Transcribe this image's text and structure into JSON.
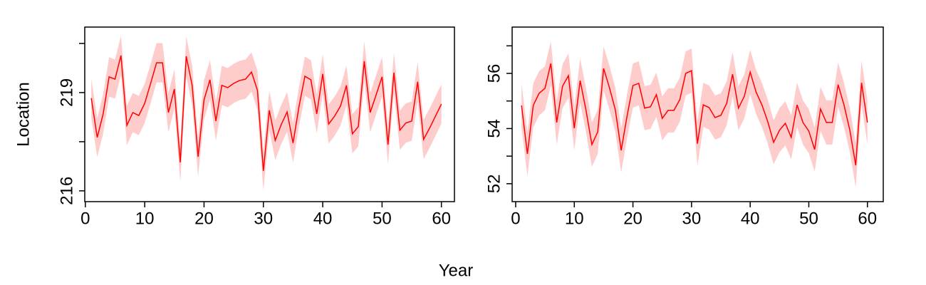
{
  "xlabel": "Year",
  "chart_data": [
    {
      "type": "line",
      "ylabel": "Location",
      "color": "#ff0000",
      "band_color": "#ffcccc",
      "x": [
        1,
        2,
        3,
        4,
        5,
        6,
        7,
        8,
        9,
        10,
        11,
        12,
        13,
        14,
        15,
        16,
        17,
        18,
        19,
        20,
        21,
        22,
        23,
        24,
        25,
        26,
        27,
        28,
        29,
        30,
        31,
        32,
        33,
        34,
        35,
        36,
        37,
        38,
        39,
        40,
        41,
        42,
        43,
        44,
        45,
        46,
        47,
        48,
        49,
        50,
        51,
        52,
        53,
        54,
        55,
        56,
        57,
        58,
        59,
        60
      ],
      "values": [
        218.83,
        217.63,
        218.35,
        219.48,
        219.41,
        220.13,
        218.0,
        218.39,
        218.3,
        218.67,
        219.28,
        219.91,
        219.91,
        218.39,
        219.11,
        216.87,
        220.11,
        219.22,
        217.04,
        218.78,
        219.39,
        218.13,
        219.22,
        219.15,
        219.28,
        219.37,
        219.41,
        219.63,
        219.07,
        216.61,
        218.46,
        217.54,
        218.02,
        218.41,
        217.46,
        218.57,
        219.5,
        219.39,
        218.35,
        219.57,
        218.04,
        218.28,
        218.59,
        219.22,
        217.74,
        217.96,
        219.96,
        218.39,
        218.93,
        219.48,
        217.41,
        219.61,
        217.85,
        218.07,
        218.13,
        219.33,
        217.57,
        217.91,
        218.28,
        218.65
      ],
      "lower": [
        218.23,
        217.03,
        217.75,
        218.88,
        218.81,
        219.53,
        217.4,
        217.79,
        217.7,
        218.07,
        218.68,
        219.31,
        219.31,
        217.79,
        218.51,
        216.27,
        219.51,
        218.62,
        216.44,
        218.18,
        218.79,
        217.53,
        218.62,
        218.55,
        218.68,
        218.77,
        218.81,
        219.03,
        218.47,
        216.01,
        217.86,
        216.94,
        217.42,
        217.81,
        216.86,
        217.97,
        218.9,
        218.79,
        217.75,
        218.97,
        217.44,
        217.68,
        217.99,
        218.62,
        217.14,
        217.36,
        219.36,
        217.79,
        218.33,
        218.88,
        216.81,
        219.01,
        217.25,
        217.47,
        217.53,
        218.73,
        216.97,
        217.31,
        217.68,
        218.05
      ],
      "upper": [
        219.43,
        218.23,
        218.95,
        220.08,
        220.01,
        220.73,
        218.6,
        218.99,
        218.9,
        219.27,
        219.88,
        220.51,
        220.51,
        218.99,
        219.71,
        217.47,
        220.71,
        219.82,
        217.64,
        219.38,
        219.99,
        218.73,
        219.82,
        219.75,
        219.88,
        219.97,
        220.01,
        220.23,
        219.67,
        217.21,
        219.06,
        218.14,
        218.62,
        219.01,
        218.06,
        219.17,
        220.1,
        219.99,
        218.95,
        220.17,
        218.64,
        218.88,
        219.19,
        219.82,
        218.34,
        218.56,
        220.56,
        218.99,
        219.53,
        220.08,
        218.01,
        220.21,
        218.45,
        218.67,
        218.73,
        219.93,
        218.17,
        218.51,
        218.88,
        219.25
      ],
      "xlim": [
        -0.1,
        62.2
      ],
      "xticks": [
        0,
        10,
        20,
        30,
        40,
        50,
        60
      ],
      "ylim": [
        215.67,
        221.0
      ],
      "yticks": [
        216,
        219
      ],
      "minor_yticks": [
        217.5,
        220.5
      ]
    },
    {
      "type": "line",
      "color": "#ff0000",
      "band_color": "#ffcccc",
      "x": [
        1,
        2,
        3,
        4,
        5,
        6,
        7,
        8,
        9,
        10,
        11,
        12,
        13,
        14,
        15,
        16,
        17,
        18,
        19,
        20,
        21,
        22,
        23,
        24,
        25,
        26,
        27,
        28,
        29,
        30,
        31,
        32,
        33,
        34,
        35,
        36,
        37,
        38,
        39,
        40,
        41,
        42,
        43,
        44,
        45,
        46,
        47,
        48,
        49,
        50,
        51,
        52,
        53,
        54,
        55,
        56,
        57,
        58,
        59,
        60
      ],
      "values": [
        54.84,
        53.08,
        54.84,
        55.28,
        55.46,
        56.36,
        54.22,
        55.54,
        55.92,
        54.01,
        55.74,
        54.66,
        53.42,
        53.88,
        56.18,
        55.48,
        54.68,
        53.21,
        54.45,
        55.56,
        55.64,
        54.74,
        54.79,
        55.23,
        54.37,
        54.66,
        54.66,
        55.05,
        56.0,
        56.1,
        53.45,
        54.86,
        54.76,
        54.4,
        54.48,
        54.92,
        55.97,
        54.74,
        55.17,
        56.05,
        55.33,
        54.86,
        54.25,
        53.5,
        53.94,
        54.19,
        53.68,
        54.86,
        54.22,
        53.91,
        53.24,
        54.71,
        54.22,
        54.22,
        55.59,
        54.86,
        53.94,
        52.67,
        55.66,
        54.22
      ],
      "lower": [
        54.04,
        52.28,
        54.04,
        54.48,
        54.66,
        55.56,
        53.42,
        54.74,
        55.12,
        53.21,
        54.94,
        53.86,
        52.62,
        53.08,
        55.38,
        54.68,
        53.88,
        52.41,
        53.65,
        54.76,
        54.84,
        53.94,
        53.99,
        54.43,
        53.57,
        53.86,
        53.86,
        54.25,
        55.2,
        55.3,
        52.65,
        54.06,
        53.96,
        53.6,
        53.68,
        54.12,
        55.17,
        53.94,
        54.37,
        55.25,
        54.53,
        54.06,
        53.45,
        52.7,
        53.14,
        53.39,
        52.88,
        54.06,
        53.42,
        53.11,
        52.44,
        53.91,
        53.42,
        53.42,
        54.79,
        54.06,
        53.14,
        51.87,
        54.86,
        53.42
      ],
      "upper": [
        55.64,
        53.88,
        55.64,
        56.08,
        56.26,
        57.16,
        55.02,
        56.34,
        56.72,
        54.81,
        56.54,
        55.46,
        54.22,
        54.68,
        56.98,
        56.28,
        55.48,
        54.01,
        55.25,
        56.36,
        56.44,
        55.54,
        55.59,
        56.03,
        55.17,
        55.46,
        55.46,
        55.85,
        56.8,
        56.9,
        54.25,
        55.66,
        55.56,
        55.2,
        55.28,
        55.72,
        56.77,
        55.54,
        55.97,
        56.85,
        56.13,
        55.66,
        55.05,
        54.3,
        54.74,
        54.99,
        54.48,
        55.66,
        55.02,
        54.71,
        54.04,
        55.51,
        55.02,
        55.02,
        56.39,
        55.66,
        54.74,
        53.47,
        56.46,
        55.02
      ],
      "xlim": [
        -0.6,
        62.7
      ],
      "xticks": [
        0,
        10,
        20,
        30,
        40,
        50,
        60
      ],
      "ylim": [
        51.35,
        57.68
      ],
      "yticks": [
        52,
        54,
        56
      ],
      "minor_yticks": [
        53,
        55,
        57
      ]
    }
  ]
}
